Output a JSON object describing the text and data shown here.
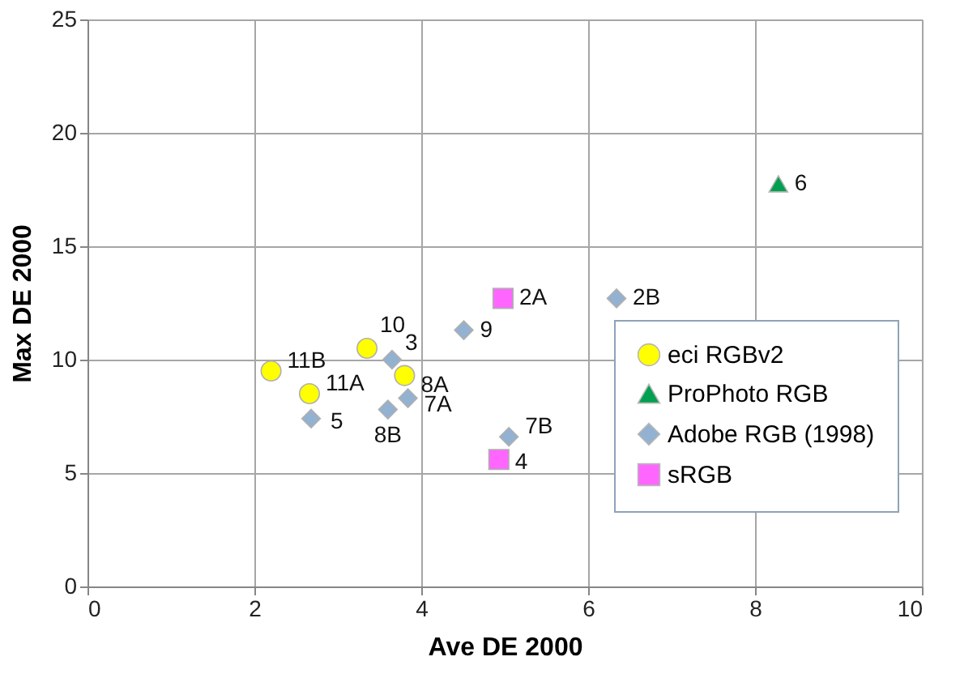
{
  "chart_data": {
    "type": "scatter",
    "xlabel": "Ave DE 2000",
    "ylabel": "Max DE 2000",
    "xlim": [
      0,
      10
    ],
    "xticks": [
      0,
      2,
      4,
      6,
      8,
      10
    ],
    "ylim": [
      0,
      25
    ],
    "yticks": [
      0,
      5,
      10,
      15,
      20,
      25
    ],
    "grid": true,
    "legend": "right",
    "series": [
      {
        "name": "eci RGBv2",
        "color": "#ffff00",
        "marker": "circle",
        "x": [
          2.2,
          2.66,
          3.35,
          3.8
        ],
        "values": [
          9.5,
          8.5,
          10.5,
          9.3
        ]
      },
      {
        "name": "ProPhoto RGB",
        "color": "#00a050",
        "marker": "triangle",
        "x": [
          8.28
        ],
        "values": [
          17.75
        ]
      },
      {
        "name": "Adobe RGB (1998)",
        "color": "#93b1d0",
        "marker": "diamond",
        "x": [
          3.65,
          2.68,
          3.6,
          3.84,
          4.51,
          5.05,
          6.34
        ],
        "values": [
          10.0,
          7.4,
          7.8,
          8.3,
          11.3,
          6.6,
          12.7
        ]
      },
      {
        "name": "sRGB",
        "color": "#ff66ff",
        "marker": "square",
        "x": [
          4.98,
          4.93
        ],
        "values": [
          12.7,
          5.6
        ]
      }
    ],
    "annotations": [
      {
        "text": "11B",
        "x": 2.2,
        "y": 9.5
      },
      {
        "text": "11A",
        "x": 2.66,
        "y": 8.5
      },
      {
        "text": "10",
        "x": 3.35,
        "y": 10.5
      },
      {
        "text": "8A",
        "x": 3.8,
        "y": 9.3
      },
      {
        "text": "6",
        "x": 8.28,
        "y": 17.75
      },
      {
        "text": "3",
        "x": 3.65,
        "y": 10.0
      },
      {
        "text": "5",
        "x": 2.68,
        "y": 7.4
      },
      {
        "text": "8B",
        "x": 3.6,
        "y": 7.8
      },
      {
        "text": "7A",
        "x": 3.84,
        "y": 8.3
      },
      {
        "text": "9",
        "x": 4.51,
        "y": 11.3
      },
      {
        "text": "7B",
        "x": 5.05,
        "y": 6.6
      },
      {
        "text": "2B",
        "x": 6.34,
        "y": 12.7
      },
      {
        "text": "2A",
        "x": 4.98,
        "y": 12.7
      },
      {
        "text": "4",
        "x": 4.93,
        "y": 5.6
      }
    ]
  }
}
